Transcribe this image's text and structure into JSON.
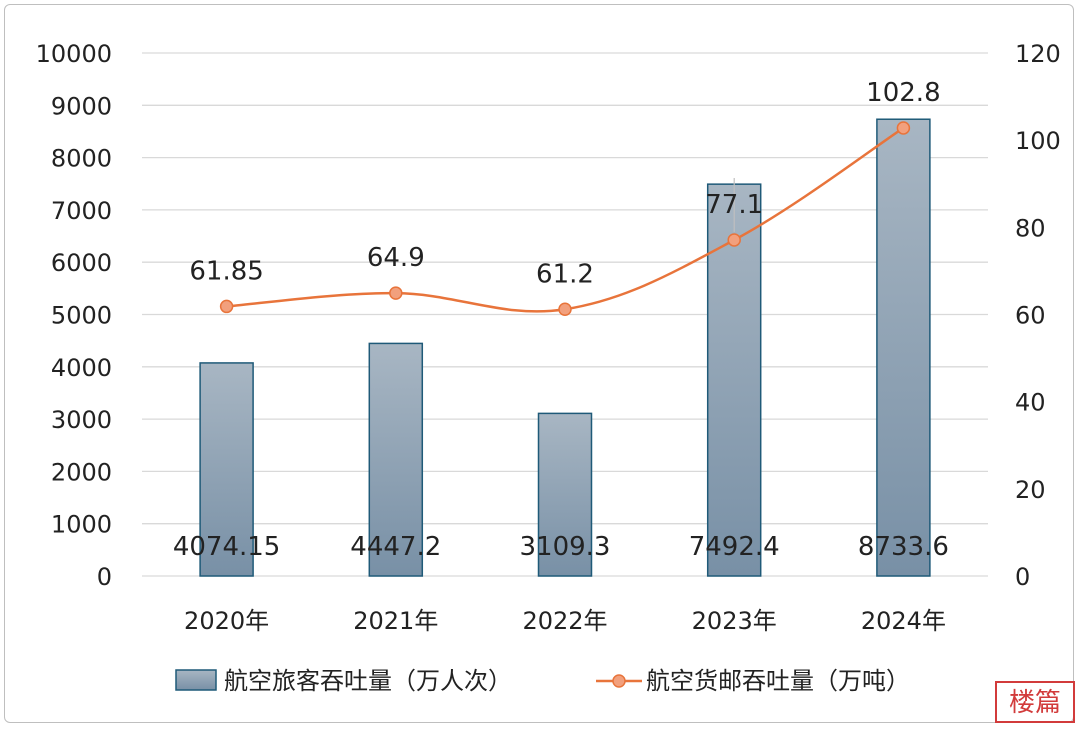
{
  "chart_data": {
    "type": "bar",
    "categories": [
      "2020年",
      "2021年",
      "2022年",
      "2023年",
      "2024年"
    ],
    "y_left": {
      "min": 0,
      "max": 10000,
      "step": 1000,
      "ticks": [
        "0",
        "1000",
        "2000",
        "3000",
        "4000",
        "5000",
        "6000",
        "7000",
        "8000",
        "9000",
        "10000"
      ]
    },
    "y_right": {
      "min": 0,
      "max": 120,
      "step": 20,
      "ticks": [
        "0",
        "20",
        "40",
        "60",
        "80",
        "100",
        "120"
      ]
    },
    "grid": true,
    "legend_position": "bottom",
    "series": [
      {
        "name": "航空旅客吞吐量（万人次）",
        "type": "bar",
        "axis": "left",
        "values": [
          4074.15,
          4447.2,
          3109.3,
          7492.4,
          8733.6
        ],
        "labels": [
          "4074.15",
          "4447.2",
          "3109.3",
          "7492.4",
          "8733.6"
        ],
        "color": "#8599ab"
      },
      {
        "name": "航空货邮吞吐量（万吨）",
        "type": "line",
        "axis": "right",
        "values": [
          61.85,
          64.9,
          61.2,
          77.1,
          102.8
        ],
        "labels": [
          "61.85",
          "64.9",
          "61.2",
          "77.1",
          "102.8"
        ],
        "color": "#e8743b"
      }
    ]
  },
  "watermark": {
    "text": "楼篇"
  }
}
